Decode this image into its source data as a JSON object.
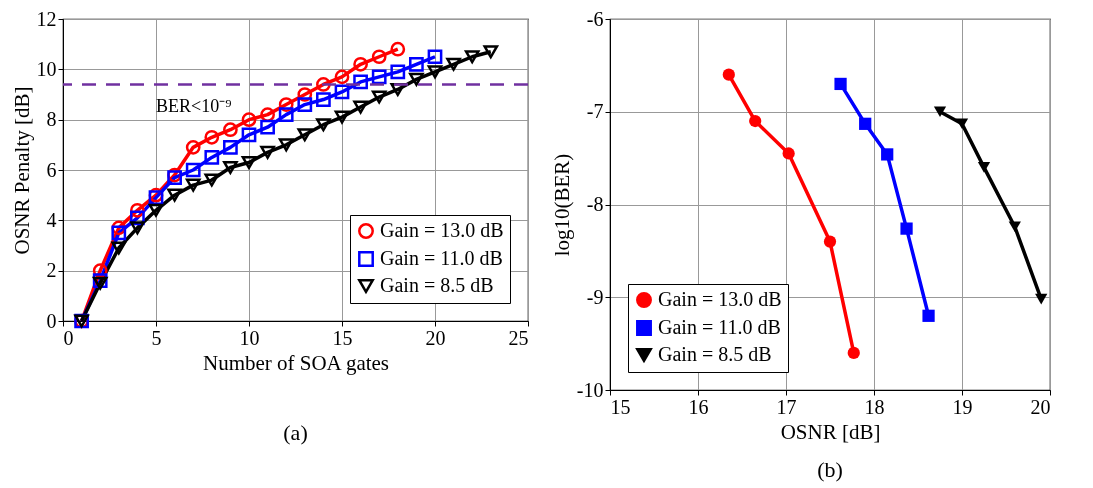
{
  "chart_data": [
    {
      "type": "line",
      "title": "(a)",
      "xlabel": "Number of SOA gates",
      "ylabel": "OSNR Penalty [dB]",
      "xlim": [
        0,
        25
      ],
      "ylim": [
        0,
        12
      ],
      "xticks": [
        0,
        5,
        10,
        15,
        20,
        25
      ],
      "yticks": [
        0,
        2,
        4,
        6,
        8,
        10,
        12
      ],
      "grid": true,
      "legend": "bottom right",
      "ref_lines": [
        {
          "axis": "y",
          "value": 9.4,
          "label": "BER<10⁻⁹",
          "color": "#7030a0",
          "line_style": "dashed"
        }
      ],
      "series": [
        {
          "name": "Gain = 13.0 dB",
          "color": "#ff0000",
          "marker": "circle",
          "x": [
            1,
            2,
            3,
            4,
            5,
            6,
            7,
            8,
            9,
            10,
            11,
            12,
            13,
            14,
            15,
            16,
            17,
            18
          ],
          "values": [
            0,
            2.0,
            3.7,
            4.4,
            5.0,
            5.8,
            6.9,
            7.3,
            7.6,
            8.0,
            8.2,
            8.6,
            9.0,
            9.4,
            9.7,
            10.2,
            10.5,
            10.8
          ]
        },
        {
          "name": "Gain = 11.0 dB",
          "color": "#0000ff",
          "marker": "square",
          "x": [
            1,
            2,
            3,
            4,
            5,
            6,
            7,
            8,
            9,
            10,
            11,
            12,
            13,
            14,
            15,
            16,
            17,
            18,
            19,
            20
          ],
          "values": [
            0,
            1.6,
            3.5,
            4.1,
            4.9,
            5.7,
            6.0,
            6.5,
            6.9,
            7.4,
            7.7,
            8.2,
            8.6,
            8.8,
            9.1,
            9.5,
            9.7,
            9.9,
            10.2,
            10.5
          ]
        },
        {
          "name": "Gain = 8.5 dB",
          "color": "#000000",
          "marker": "triangle",
          "x": [
            1,
            2,
            3,
            4,
            5,
            6,
            7,
            8,
            9,
            10,
            11,
            12,
            13,
            14,
            15,
            16,
            17,
            18,
            19,
            20,
            21,
            22,
            23
          ],
          "values": [
            0,
            1.5,
            2.9,
            3.7,
            4.4,
            5.0,
            5.4,
            5.6,
            6.1,
            6.3,
            6.7,
            7.0,
            7.4,
            7.8,
            8.1,
            8.5,
            8.9,
            9.2,
            9.6,
            9.9,
            10.2,
            10.5,
            10.7
          ]
        }
      ]
    },
    {
      "type": "line",
      "title": "(b)",
      "xlabel": "OSNR [dB]",
      "ylabel": "log10(BER)",
      "xlim": [
        15,
        20
      ],
      "ylim": [
        -10,
        -6
      ],
      "xticks": [
        15,
        16,
        17,
        18,
        19,
        20
      ],
      "yticks": [
        -10,
        -9,
        -8,
        -7,
        -6
      ],
      "grid": true,
      "legend": "bottom left",
      "series": [
        {
          "name": "Gain = 13.0 dB",
          "color": "#ff0000",
          "marker": "circle",
          "x": [
            16.35,
            16.65,
            17.03,
            17.5,
            17.77
          ],
          "values": [
            -6.6,
            -7.1,
            -7.45,
            -8.4,
            -9.6
          ]
        },
        {
          "name": "Gain = 11.0 dB",
          "color": "#0000ff",
          "marker": "square",
          "x": [
            17.62,
            17.9,
            18.15,
            18.37,
            18.62
          ],
          "values": [
            -6.7,
            -7.13,
            -7.46,
            -8.26,
            -9.2
          ]
        },
        {
          "name": "Gain = 8.5 dB",
          "color": "#000000",
          "marker": "triangle",
          "x": [
            18.75,
            19.0,
            19.25,
            19.6,
            19.9
          ],
          "values": [
            -7.0,
            -7.13,
            -7.6,
            -8.24,
            -9.02
          ]
        }
      ]
    }
  ]
}
